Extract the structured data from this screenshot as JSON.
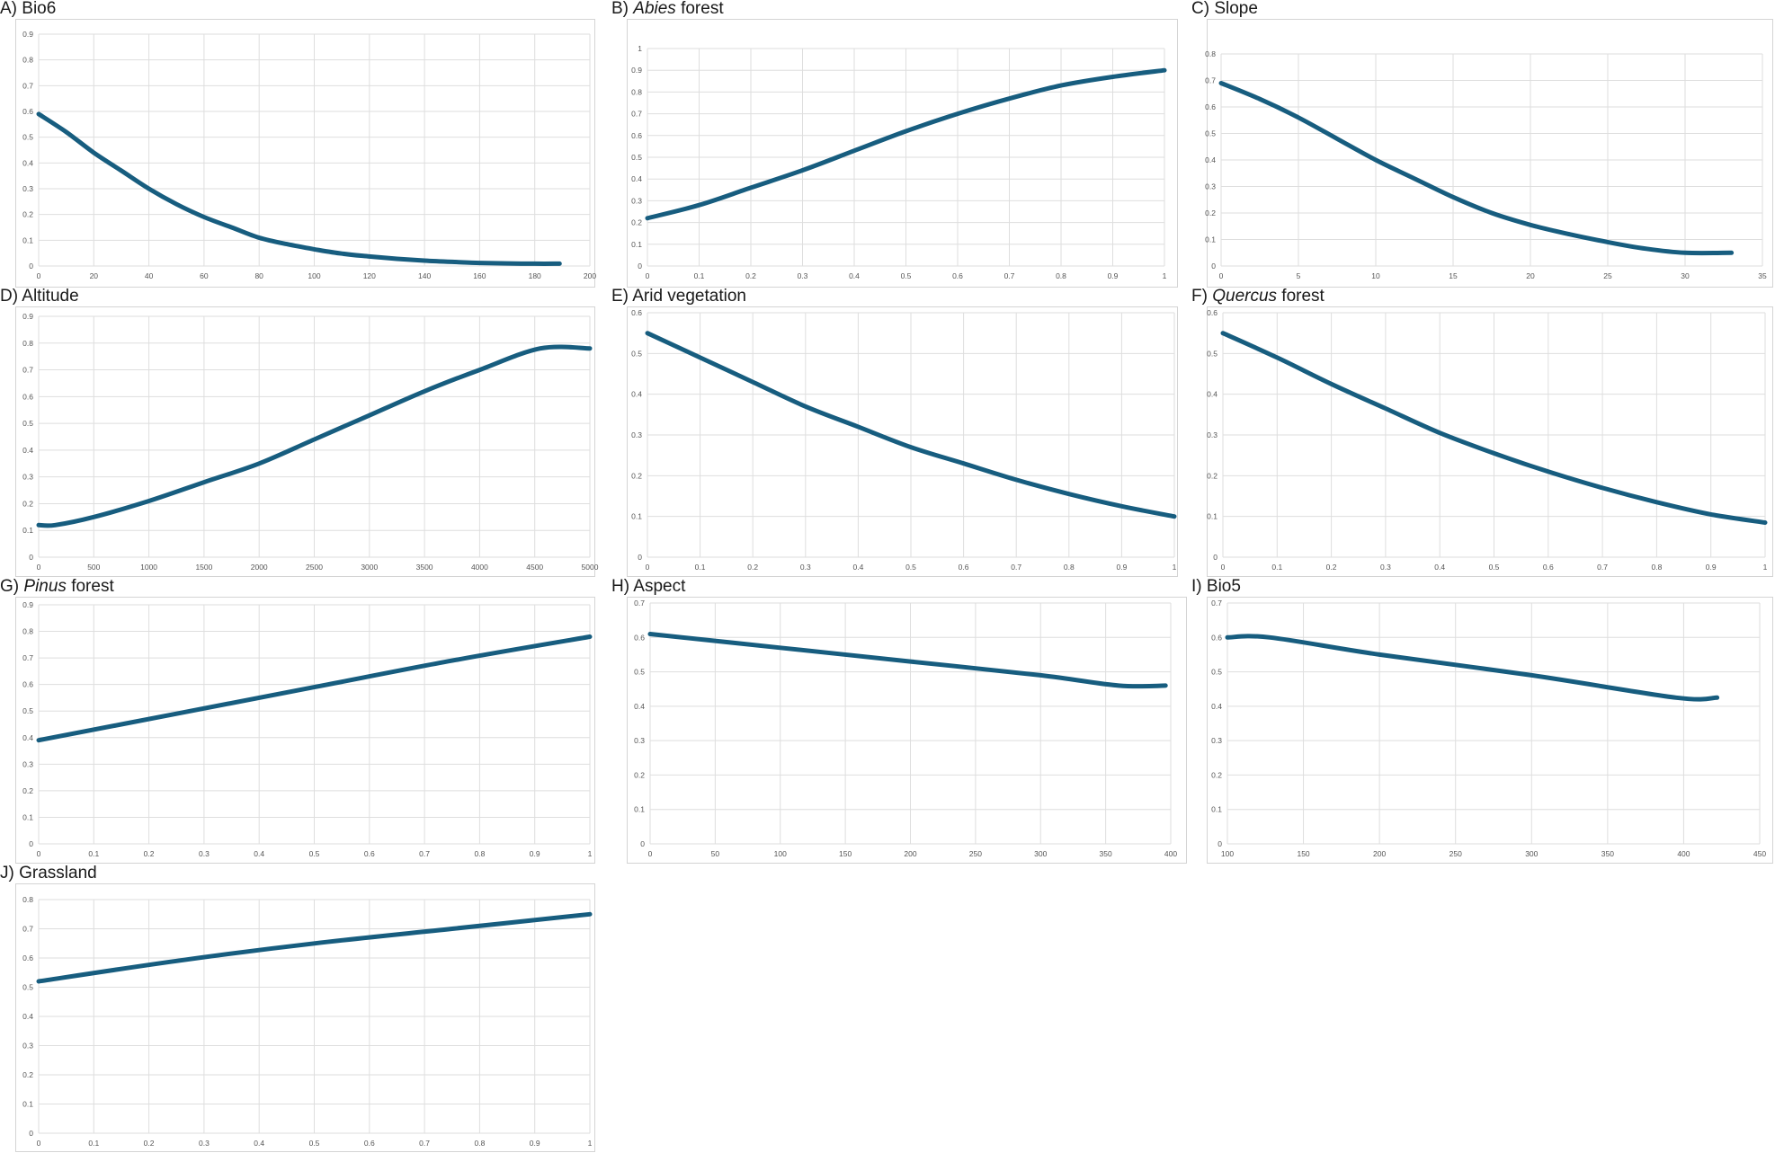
{
  "colors": {
    "line": "#175D7F",
    "grid": "#dedede",
    "frame": "#d4d4d4",
    "tick_text": "#555555"
  },
  "chart_data": [
    {
      "id": "A",
      "type": "line",
      "title": {
        "prefix": "A) ",
        "italic": "",
        "suffix": "Bio6"
      },
      "xlim": [
        0,
        200
      ],
      "ylim": [
        0,
        0.9
      ],
      "xticks": [
        "0",
        "20",
        "40",
        "60",
        "80",
        "100",
        "120",
        "140",
        "160",
        "180",
        "200"
      ],
      "yticks": [
        "0",
        "0.1",
        "0.2",
        "0.3",
        "0.4",
        "0.5",
        "0.6",
        "0.7",
        "0.8",
        "0.9"
      ],
      "grid": true,
      "series": [
        {
          "x": [
            0,
            10,
            20,
            30,
            40,
            50,
            60,
            70,
            80,
            90,
            100,
            110,
            120,
            130,
            140,
            150,
            160,
            170,
            180,
            189
          ],
          "y": [
            0.59,
            0.52,
            0.44,
            0.37,
            0.3,
            0.24,
            0.19,
            0.15,
            0.11,
            0.085,
            0.065,
            0.048,
            0.037,
            0.028,
            0.021,
            0.016,
            0.012,
            0.01,
            0.009,
            0.009
          ]
        }
      ]
    },
    {
      "id": "B",
      "type": "line",
      "title": {
        "prefix": "B) ",
        "italic": "Abies",
        "suffix": " forest"
      },
      "xlim": [
        0,
        1
      ],
      "ylim": [
        0,
        1
      ],
      "xticks": [
        "0",
        "0.1",
        "0.2",
        "0.3",
        "0.4",
        "0.5",
        "0.6",
        "0.7",
        "0.8",
        "0.9",
        "1"
      ],
      "yticks": [
        "0",
        "0.1",
        "0.2",
        "0.3",
        "0.4",
        "0.5",
        "0.6",
        "0.7",
        "0.8",
        "0.9",
        "1"
      ],
      "grid": true,
      "series": [
        {
          "x": [
            0,
            0.1,
            0.2,
            0.3,
            0.4,
            0.5,
            0.6,
            0.7,
            0.8,
            0.9,
            1
          ],
          "y": [
            0.22,
            0.28,
            0.36,
            0.44,
            0.53,
            0.62,
            0.7,
            0.77,
            0.83,
            0.87,
            0.9
          ]
        }
      ]
    },
    {
      "id": "C",
      "type": "line",
      "title": {
        "prefix": "C) ",
        "italic": "",
        "suffix": "Slope"
      },
      "xlim": [
        0,
        35
      ],
      "ylim": [
        0,
        0.8
      ],
      "xticks": [
        "0",
        "5",
        "10",
        "15",
        "20",
        "25",
        "30",
        "35"
      ],
      "yticks": [
        "0",
        "0.1",
        "0.2",
        "0.3",
        "0.4",
        "0.5",
        "0.6",
        "0.7",
        "0.8"
      ],
      "grid": true,
      "series": [
        {
          "x": [
            0,
            2.5,
            5,
            7.5,
            10,
            12.5,
            15,
            17.5,
            20,
            22.5,
            25,
            27.5,
            30,
            33
          ],
          "y": [
            0.69,
            0.63,
            0.56,
            0.48,
            0.4,
            0.33,
            0.26,
            0.2,
            0.155,
            0.12,
            0.09,
            0.065,
            0.05,
            0.05
          ]
        }
      ]
    },
    {
      "id": "D",
      "type": "line",
      "title": {
        "prefix": "D) ",
        "italic": "",
        "suffix": "Altitude"
      },
      "xlim": [
        0,
        5000
      ],
      "ylim": [
        0,
        0.9
      ],
      "xticks": [
        "0",
        "500",
        "1000",
        "1500",
        "2000",
        "2500",
        "3000",
        "3500",
        "4000",
        "4500",
        "5000"
      ],
      "yticks": [
        "0",
        "0.1",
        "0.2",
        "0.3",
        "0.4",
        "0.5",
        "0.6",
        "0.7",
        "0.8",
        "0.9"
      ],
      "grid": true,
      "series": [
        {
          "x": [
            0,
            150,
            500,
            1000,
            1500,
            2000,
            2500,
            3000,
            3500,
            4000,
            4550,
            5000
          ],
          "y": [
            0.12,
            0.12,
            0.15,
            0.21,
            0.28,
            0.35,
            0.44,
            0.53,
            0.62,
            0.7,
            0.78,
            0.78
          ]
        }
      ]
    },
    {
      "id": "E",
      "type": "line",
      "title": {
        "prefix": "E) ",
        "italic": "",
        "suffix": "Arid vegetation"
      },
      "xlim": [
        0,
        1
      ],
      "ylim": [
        0,
        0.6
      ],
      "xticks": [
        "0",
        "0.1",
        "0.2",
        "0.3",
        "0.4",
        "0.5",
        "0.6",
        "0.7",
        "0.8",
        "0.9",
        "1"
      ],
      "yticks": [
        "0",
        "0.1",
        "0.2",
        "0.3",
        "0.4",
        "0.5",
        "0.6"
      ],
      "grid": true,
      "series": [
        {
          "x": [
            0,
            0.1,
            0.2,
            0.3,
            0.4,
            0.5,
            0.6,
            0.7,
            0.8,
            0.9,
            1
          ],
          "y": [
            0.55,
            0.49,
            0.43,
            0.37,
            0.32,
            0.27,
            0.23,
            0.19,
            0.155,
            0.125,
            0.1
          ]
        }
      ]
    },
    {
      "id": "F",
      "type": "line",
      "title": {
        "prefix": "F) ",
        "italic": "Quercus",
        "suffix": " forest"
      },
      "xlim": [
        0,
        1
      ],
      "ylim": [
        0,
        0.6
      ],
      "xticks": [
        "0",
        "0.1",
        "0.2",
        "0.3",
        "0.4",
        "0.5",
        "0.6",
        "0.7",
        "0.8",
        "0.9",
        "1"
      ],
      "yticks": [
        "0",
        "0.1",
        "0.2",
        "0.3",
        "0.4",
        "0.5",
        "0.6"
      ],
      "grid": true,
      "series": [
        {
          "x": [
            0,
            0.1,
            0.2,
            0.3,
            0.4,
            0.5,
            0.6,
            0.7,
            0.8,
            0.9,
            1
          ],
          "y": [
            0.55,
            0.49,
            0.425,
            0.365,
            0.305,
            0.255,
            0.21,
            0.17,
            0.135,
            0.105,
            0.085
          ]
        }
      ]
    },
    {
      "id": "G",
      "type": "line",
      "title": {
        "prefix": "G) ",
        "italic": "Pinus",
        "suffix": " forest"
      },
      "xlim": [
        0,
        1
      ],
      "ylim": [
        0,
        0.9
      ],
      "xticks": [
        "0",
        "0.1",
        "0.2",
        "0.3",
        "0.4",
        "0.5",
        "0.6",
        "0.7",
        "0.8",
        "0.9",
        "1"
      ],
      "yticks": [
        "0",
        "0.1",
        "0.2",
        "0.3",
        "0.4",
        "0.5",
        "0.6",
        "0.7",
        "0.8",
        "0.9"
      ],
      "grid": true,
      "series": [
        {
          "x": [
            0,
            0.25,
            0.5,
            0.75,
            1
          ],
          "y": [
            0.39,
            0.49,
            0.59,
            0.69,
            0.78
          ]
        }
      ]
    },
    {
      "id": "H",
      "type": "line",
      "title": {
        "prefix": "H) ",
        "italic": "",
        "suffix": "Aspect"
      },
      "xlim": [
        0,
        400
      ],
      "ylim": [
        0,
        0.7
      ],
      "xticks": [
        "0",
        "50",
        "100",
        "150",
        "200",
        "250",
        "300",
        "350",
        "400"
      ],
      "yticks": [
        "0",
        "0.1",
        "0.2",
        "0.3",
        "0.4",
        "0.5",
        "0.6",
        "0.7"
      ],
      "grid": true,
      "series": [
        {
          "x": [
            0,
            100,
            200,
            300,
            360,
            396
          ],
          "y": [
            0.61,
            0.57,
            0.53,
            0.49,
            0.46,
            0.46
          ]
        }
      ]
    },
    {
      "id": "I",
      "type": "line",
      "title": {
        "prefix": "I) ",
        "italic": "",
        "suffix": "Bio5"
      },
      "xlim": [
        100,
        450
      ],
      "ylim": [
        0,
        0.7
      ],
      "xticks": [
        "100",
        "150",
        "200",
        "250",
        "300",
        "350",
        "400",
        "450"
      ],
      "yticks": [
        "0",
        "0.1",
        "0.2",
        "0.3",
        "0.4",
        "0.5",
        "0.6",
        "0.7"
      ],
      "grid": true,
      "series": [
        {
          "x": [
            100,
            128,
            200,
            300,
            395,
            422
          ],
          "y": [
            0.6,
            0.6,
            0.55,
            0.49,
            0.425,
            0.425
          ]
        }
      ]
    },
    {
      "id": "J",
      "type": "line",
      "title": {
        "prefix": "J) ",
        "italic": "",
        "suffix": "Grassland"
      },
      "xlim": [
        0,
        1
      ],
      "ylim": [
        0,
        0.8
      ],
      "xticks": [
        "0",
        "0.1",
        "0.2",
        "0.3",
        "0.4",
        "0.5",
        "0.6",
        "0.7",
        "0.8",
        "0.9",
        "1"
      ],
      "yticks": [
        "0",
        "0.1",
        "0.2",
        "0.3",
        "0.4",
        "0.5",
        "0.6",
        "0.7",
        "0.8"
      ],
      "grid": true,
      "series": [
        {
          "x": [
            0,
            0.25,
            0.5,
            0.75,
            1
          ],
          "y": [
            0.52,
            0.59,
            0.65,
            0.7,
            0.75
          ]
        }
      ]
    }
  ]
}
